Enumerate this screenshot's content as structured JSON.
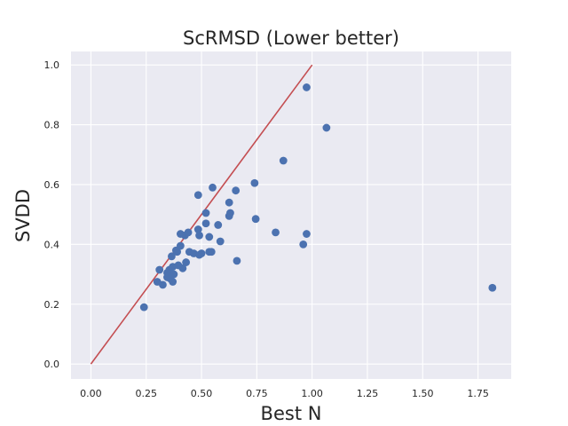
{
  "chart_data": {
    "type": "scatter",
    "title": "ScRMSD (Lower better)",
    "xlabel": "Best N",
    "ylabel": "SVDD",
    "xlim": [
      -0.09,
      1.9
    ],
    "ylim": [
      -0.05,
      1.045
    ],
    "x_ticks": [
      "0.00",
      "0.25",
      "0.50",
      "0.75",
      "1.00",
      "1.25",
      "1.50",
      "1.75"
    ],
    "y_ticks": [
      "0.0",
      "0.2",
      "0.4",
      "0.6",
      "0.8",
      "1.0"
    ],
    "grid": true,
    "background_color": "#eaeaf2",
    "point_color": "#4c72b0",
    "reference_line": {
      "from": [
        0,
        0
      ],
      "to": [
        1,
        1
      ],
      "color": "#c44e52"
    },
    "series": [
      {
        "points": [
          [
            0.24,
            0.19
          ],
          [
            0.3,
            0.275
          ],
          [
            0.31,
            0.315
          ],
          [
            0.325,
            0.265
          ],
          [
            0.345,
            0.29
          ],
          [
            0.345,
            0.305
          ],
          [
            0.355,
            0.315
          ],
          [
            0.36,
            0.285
          ],
          [
            0.365,
            0.36
          ],
          [
            0.37,
            0.325
          ],
          [
            0.37,
            0.275
          ],
          [
            0.375,
            0.3
          ],
          [
            0.385,
            0.38
          ],
          [
            0.39,
            0.375
          ],
          [
            0.395,
            0.33
          ],
          [
            0.405,
            0.395
          ],
          [
            0.405,
            0.435
          ],
          [
            0.415,
            0.32
          ],
          [
            0.425,
            0.43
          ],
          [
            0.43,
            0.34
          ],
          [
            0.44,
            0.44
          ],
          [
            0.445,
            0.375
          ],
          [
            0.465,
            0.37
          ],
          [
            0.485,
            0.45
          ],
          [
            0.485,
            0.565
          ],
          [
            0.49,
            0.43
          ],
          [
            0.49,
            0.365
          ],
          [
            0.5,
            0.37
          ],
          [
            0.52,
            0.47
          ],
          [
            0.52,
            0.505
          ],
          [
            0.535,
            0.425
          ],
          [
            0.535,
            0.375
          ],
          [
            0.545,
            0.375
          ],
          [
            0.55,
            0.59
          ],
          [
            0.575,
            0.465
          ],
          [
            0.585,
            0.41
          ],
          [
            0.625,
            0.54
          ],
          [
            0.625,
            0.495
          ],
          [
            0.63,
            0.505
          ],
          [
            0.655,
            0.58
          ],
          [
            0.66,
            0.345
          ],
          [
            0.74,
            0.605
          ],
          [
            0.745,
            0.485
          ],
          [
            0.835,
            0.44
          ],
          [
            0.87,
            0.68
          ],
          [
            0.96,
            0.4
          ],
          [
            0.975,
            0.435
          ],
          [
            0.975,
            0.925
          ],
          [
            1.065,
            0.79
          ],
          [
            1.815,
            0.255
          ]
        ]
      }
    ]
  }
}
